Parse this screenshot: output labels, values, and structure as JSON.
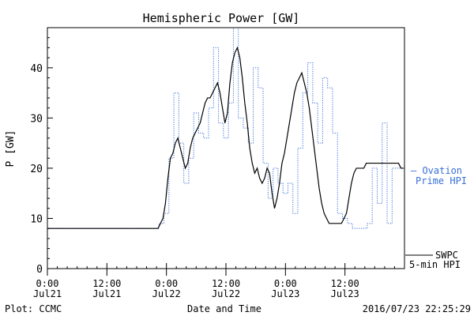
{
  "chart_data": {
    "type": "line",
    "title": "Hemispheric Power [GW]",
    "xlabel": "Date and Time",
    "ylabel": "P [GW]",
    "xlim": [
      0,
      72
    ],
    "ylim": [
      0,
      48
    ],
    "yticks": [
      0,
      10,
      20,
      30,
      40
    ],
    "xticks": [
      {
        "x": 0,
        "time": "0:00",
        "date": "Jul21"
      },
      {
        "x": 12,
        "time": "12:00",
        "date": "Jul21"
      },
      {
        "x": 24,
        "time": "0:00",
        "date": "Jul22"
      },
      {
        "x": 36,
        "time": "12:00",
        "date": "Jul22"
      },
      {
        "x": 48,
        "time": "0:00",
        "date": "Jul23"
      },
      {
        "x": 60,
        "time": "12:00",
        "date": "Jul23"
      }
    ],
    "series": [
      {
        "name": "Ovation Prime HPI",
        "style": "dotted-step",
        "color": "#3a6fd8",
        "x": [
          0,
          22.5,
          23.5,
          24.5,
          25.5,
          26.5,
          27.5,
          28.5,
          29.5,
          30.5,
          31.5,
          32.5,
          33.5,
          34.5,
          35.5,
          36.5,
          37.5,
          38.5,
          39.5,
          40.5,
          41.5,
          42.5,
          43.5,
          44.5,
          45.5,
          46.5,
          47.5,
          48.5,
          49.5,
          50.5,
          51.5,
          52.5,
          53.5,
          54.5,
          55.5,
          56.5,
          57.5,
          58.5,
          59.5,
          60.5,
          61.5,
          62.5,
          63.5,
          64.5,
          65.5,
          66.5,
          67.5,
          68.5,
          69.5,
          70.5,
          71.5
        ],
        "y": [
          8,
          9,
          11,
          22,
          35,
          25,
          17,
          22,
          31,
          27,
          26,
          32,
          44,
          29,
          26,
          33,
          48,
          30,
          28,
          25,
          40,
          36,
          21,
          14,
          20,
          17,
          15,
          17,
          11,
          24,
          35,
          41,
          33,
          25,
          38,
          36,
          27,
          11,
          10,
          9,
          8,
          8,
          8,
          9,
          20,
          13,
          29,
          9,
          20,
          20,
          20
        ]
      },
      {
        "name": "SWPC 5-min HPI",
        "style": "solid",
        "color": "#000000",
        "x": [
          0,
          22.3,
          22.8,
          23.3,
          23.8,
          24.3,
          24.8,
          25.3,
          25.8,
          26.3,
          26.8,
          27.3,
          27.8,
          28.3,
          28.8,
          29.3,
          29.8,
          30.3,
          30.8,
          31.3,
          31.8,
          32.3,
          32.8,
          33.3,
          33.8,
          34.3,
          34.8,
          35.3,
          35.8,
          36.3,
          36.8,
          37.3,
          37.8,
          38.3,
          38.8,
          39.3,
          39.8,
          40.3,
          40.8,
          41.3,
          41.8,
          42.3,
          42.8,
          43.3,
          43.8,
          44.3,
          44.8,
          45.3,
          45.8,
          46.3,
          46.8,
          47.3,
          47.8,
          48.3,
          48.8,
          49.3,
          49.8,
          50.3,
          50.8,
          51.3,
          51.8,
          52.3,
          52.8,
          53.3,
          53.8,
          54.3,
          54.8,
          55.3,
          55.8,
          56.3,
          56.8,
          57.3,
          57.8,
          58.3,
          58.8,
          59.3,
          59.8,
          60.3,
          60.8,
          61.3,
          61.8,
          62.3,
          62.8,
          63.3,
          63.8,
          64.3,
          64.8,
          65.3,
          65.8,
          66.3,
          66.8,
          67.3,
          67.8,
          68.3,
          68.8,
          69.3,
          69.8,
          70.3,
          70.8,
          71.3,
          71.8
        ],
        "y": [
          8,
          8,
          9,
          10,
          13,
          18,
          22,
          23,
          25,
          26,
          24,
          22,
          20,
          21,
          24,
          26,
          27,
          28,
          29,
          31,
          33,
          34,
          34,
          35,
          36,
          37,
          35,
          32,
          29,
          31,
          37,
          41,
          43,
          44,
          42,
          38,
          33,
          29,
          24,
          21,
          19,
          20,
          18,
          17,
          18,
          20,
          19,
          15,
          12,
          14,
          17,
          21,
          23,
          26,
          29,
          32,
          35,
          37,
          38,
          39,
          37,
          35,
          32,
          28,
          24,
          20,
          16,
          13,
          11,
          10,
          9,
          9,
          9,
          9,
          9,
          9,
          10,
          11,
          14,
          17,
          19,
          20,
          20,
          20,
          20,
          21,
          21,
          21,
          21,
          21,
          21,
          21,
          21,
          21,
          21,
          21,
          21,
          21,
          21,
          20,
          20
        ]
      }
    ],
    "legend": {
      "ovation": [
        "— Ovation",
        "Prime HPI"
      ],
      "swpc": [
        "SWPC",
        "5-min HPI"
      ]
    }
  },
  "footer": {
    "plot_credit": "Plot: CCMC",
    "timestamp": "2016/07/23 22:25:29"
  }
}
